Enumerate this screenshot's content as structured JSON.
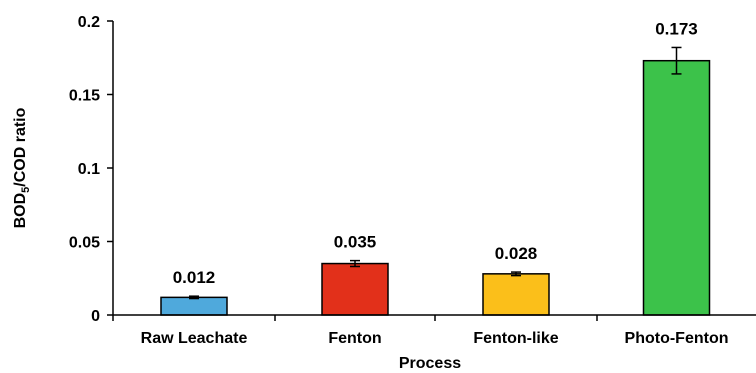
{
  "chart_data": {
    "type": "bar",
    "categories": [
      "Raw Leachate",
      "Fenton",
      "Fenton-like",
      "Photo-Fenton"
    ],
    "values": [
      0.012,
      0.035,
      0.028,
      0.173
    ],
    "error": [
      0.0008,
      0.002,
      0.0012,
      0.009
    ],
    "data_labels": [
      "0.012",
      "0.035",
      "0.028",
      "0.173"
    ],
    "colors": [
      "#4fa9dc",
      "#e2301a",
      "#fbbf1a",
      "#3cc24a"
    ],
    "xlabel": "Process",
    "ylabel_main": "BOD",
    "ylabel_sub": "5",
    "ylabel_tail": "/COD ratio",
    "ylim": [
      0,
      0.2
    ],
    "yticks": [
      0,
      0.05,
      0.1,
      0.15,
      0.2
    ],
    "ytick_labels": [
      "0",
      "0.05",
      "0.1",
      "0.15",
      "0.2"
    ],
    "grid": false,
    "legend": "none"
  }
}
